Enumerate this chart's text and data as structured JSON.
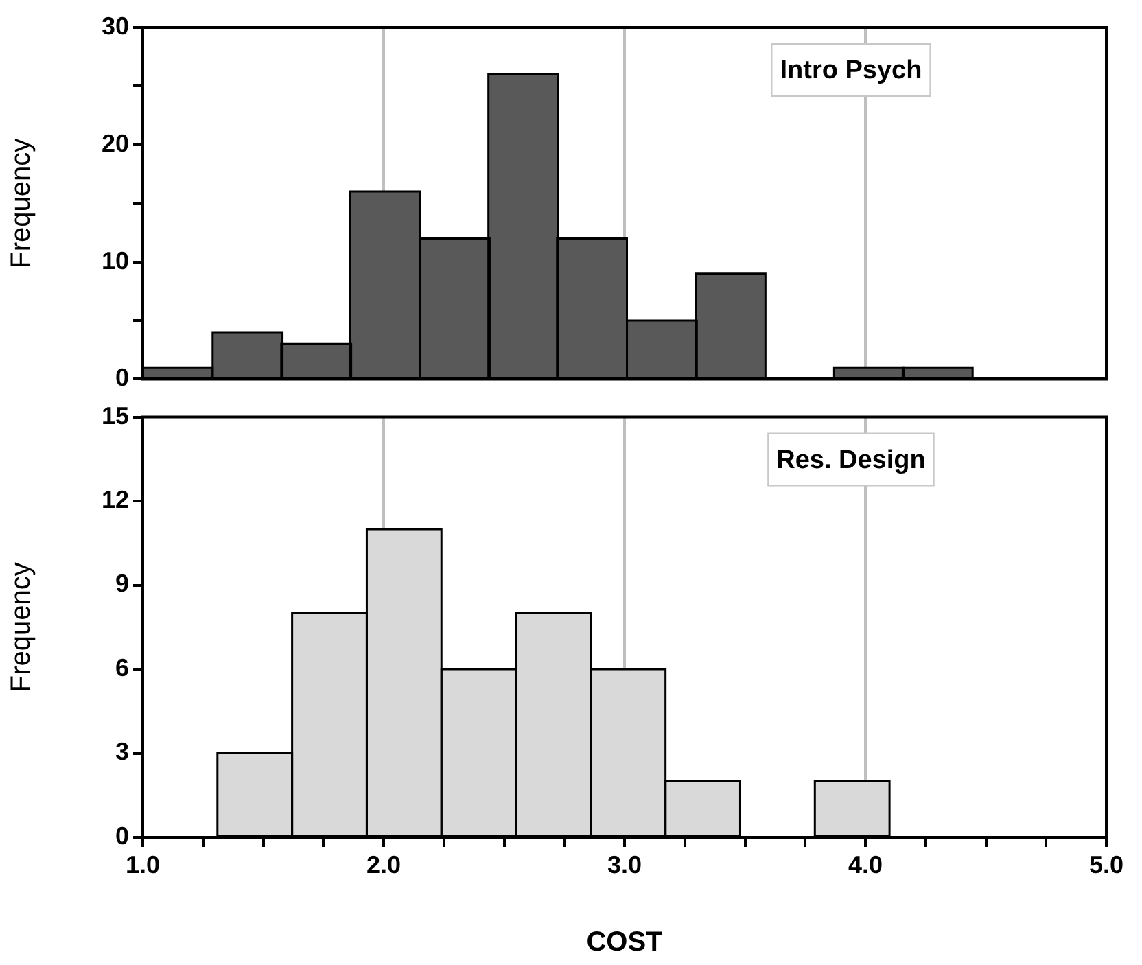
{
  "chart_data": [
    {
      "type": "histogram",
      "ylabel": "Frequency",
      "annotations": [
        "Intro Psych"
      ],
      "bins": [
        1.0,
        1.29,
        1.58,
        1.86,
        2.15,
        2.44,
        2.72,
        3.01,
        3.3,
        3.58,
        3.87,
        4.16,
        4.44
      ],
      "values": [
        1,
        4,
        3,
        16,
        12,
        26,
        12,
        5,
        9,
        0,
        1,
        1
      ],
      "color": "#595959",
      "xlim": [
        1,
        5
      ],
      "xticks": [
        1,
        2,
        3,
        4,
        5
      ],
      "ylim": [
        0,
        30
      ],
      "yticks": [
        0,
        {
          "value": 5,
          "label": null
        },
        10,
        {
          "value": 15,
          "label": null
        },
        20,
        {
          "value": 25,
          "label": null
        },
        30
      ],
      "grid": "x",
      "tick_labels": "y"
    },
    {
      "type": "histogram",
      "ylabel": "Frequency",
      "xlabel": "COST",
      "annotations": [
        "Res. Design"
      ],
      "bins": [
        1.31,
        1.62,
        1.93,
        2.24,
        2.55,
        2.86,
        3.17,
        3.48,
        3.79,
        4.1
      ],
      "values": [
        3,
        8,
        11,
        6,
        8,
        6,
        2,
        0,
        2
      ],
      "color": "#d9d9d9",
      "xlim": [
        1,
        5
      ],
      "xticks": [
        {
          "value": 1,
          "label": "1.0"
        },
        {
          "value": 1.25,
          "label": null
        },
        {
          "value": 1.5,
          "label": null
        },
        {
          "value": 1.75,
          "label": null
        },
        {
          "value": 2,
          "label": "2.0"
        },
        {
          "value": 2.25,
          "label": null
        },
        {
          "value": 2.5,
          "label": null
        },
        {
          "value": 2.75,
          "label": null
        },
        {
          "value": 3,
          "label": "3.0"
        },
        {
          "value": 3.25,
          "label": null
        },
        {
          "value": 3.5,
          "label": null
        },
        {
          "value": 3.75,
          "label": null
        },
        {
          "value": 4,
          "label": "4.0"
        },
        {
          "value": 4.25,
          "label": null
        },
        {
          "value": 4.5,
          "label": null
        },
        {
          "value": 4.75,
          "label": null
        },
        {
          "value": 5,
          "label": "5.0"
        }
      ],
      "ylim": [
        0,
        15
      ],
      "yticks": [
        0,
        3,
        6,
        9,
        12,
        15
      ],
      "grid": "x"
    }
  ]
}
